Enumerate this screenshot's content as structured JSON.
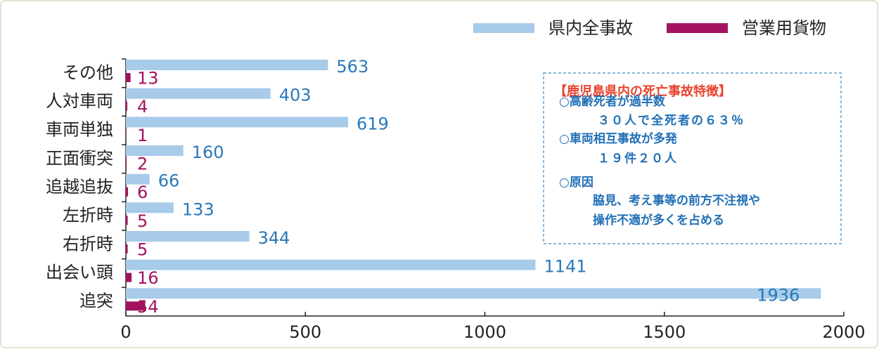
{
  "chart_data": {
    "type": "barh",
    "categories": [
      "その他",
      "人対車両",
      "車両単独",
      "正面衝突",
      "追越追抜",
      "左折時",
      "右折時",
      "出会い頭",
      "追突"
    ],
    "series": [
      {
        "name": "県内全事故",
        "color": "#a7cbe9",
        "label_color": "#2a78b8",
        "values": [
          563,
          403,
          619,
          160,
          66,
          133,
          344,
          1141,
          1936
        ]
      },
      {
        "name": "営業用貨物",
        "color": "#a3125f",
        "label_color": "#a3125f",
        "values": [
          13,
          4,
          1,
          2,
          6,
          5,
          5,
          16,
          54
        ]
      }
    ],
    "xlim": [
      0,
      2000
    ],
    "xticks": [
      0,
      500,
      1000,
      1500,
      2000
    ],
    "legend": "top-right",
    "annotation": {
      "title": "【鹿児島県内の死亡事故特徴】",
      "lines": [
        "○高齢死者が過半数",
        "３０人で全死者の６３％",
        "○車両相互事故が多発",
        "１９件２０人",
        "○原因",
        "脇見、考え事等の前方不注視や",
        "操作不適が多くを占める"
      ]
    }
  }
}
